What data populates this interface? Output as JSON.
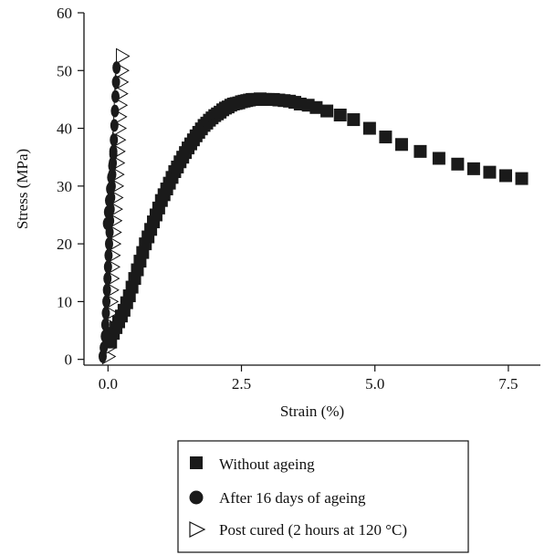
{
  "chart_data": {
    "type": "scatter",
    "title": "",
    "xlabel": "Strain (%)",
    "ylabel": "Stress (MPa)",
    "xlim": [
      -0.45,
      8.1
    ],
    "ylim": [
      -1,
      60
    ],
    "xticks": [
      0.0,
      2.5,
      5.0,
      7.5
    ],
    "xtick_labels": [
      "0.0",
      "2.5",
      "5.0",
      "7.5"
    ],
    "yticks": [
      0,
      10,
      20,
      30,
      40,
      50,
      60
    ],
    "ytick_labels": [
      "0",
      "10",
      "20",
      "30",
      "40",
      "50",
      "60"
    ],
    "grid": false,
    "legend_position": "bottom",
    "series": [
      {
        "name": "Without ageing",
        "marker": "square",
        "color": "#1a1a1a",
        "x": [
          0.05,
          0.1,
          0.15,
          0.2,
          0.25,
          0.3,
          0.35,
          0.4,
          0.45,
          0.5,
          0.55,
          0.6,
          0.65,
          0.7,
          0.75,
          0.8,
          0.85,
          0.9,
          0.95,
          1.0,
          1.05,
          1.1,
          1.15,
          1.2,
          1.25,
          1.3,
          1.35,
          1.4,
          1.45,
          1.5,
          1.55,
          1.6,
          1.65,
          1.7,
          1.75,
          1.8,
          1.85,
          1.9,
          1.95,
          2.0,
          2.05,
          2.1,
          2.15,
          2.2,
          2.25,
          2.3,
          2.35,
          2.4,
          2.45,
          2.5,
          2.55,
          2.6,
          2.65,
          2.7,
          2.75,
          2.8,
          2.85,
          2.9,
          2.95,
          3.0,
          3.1,
          3.2,
          3.3,
          3.4,
          3.5,
          3.6,
          3.75,
          3.9,
          4.1,
          4.35,
          4.6,
          4.9,
          5.2,
          5.5,
          5.85,
          6.2,
          6.55,
          6.85,
          7.15,
          7.45,
          7.75
        ],
        "y": [
          3.0,
          4.5,
          5.5,
          6.5,
          7.5,
          8.5,
          9.8,
          11.0,
          12.5,
          14.0,
          15.5,
          17.0,
          18.5,
          20.0,
          21.2,
          22.5,
          23.8,
          25.0,
          26.2,
          27.5,
          28.5,
          29.5,
          30.5,
          31.5,
          32.5,
          33.3,
          34.2,
          35.0,
          35.8,
          36.6,
          37.3,
          38.0,
          38.7,
          39.3,
          39.9,
          40.5,
          40.9,
          41.4,
          41.8,
          42.2,
          42.5,
          42.8,
          43.2,
          43.5,
          43.7,
          44.0,
          44.2,
          44.3,
          44.4,
          44.6,
          44.7,
          44.8,
          44.9,
          45.0,
          45.0,
          45.0,
          45.1,
          45.0,
          45.0,
          45.0,
          45.0,
          44.9,
          44.8,
          44.7,
          44.5,
          44.2,
          44.0,
          43.6,
          43.0,
          42.3,
          41.5,
          40.0,
          38.5,
          37.2,
          36.0,
          34.8,
          33.8,
          33.0,
          32.4,
          31.8,
          31.3
        ]
      },
      {
        "name": "After 16 days of ageing",
        "marker": "circle",
        "color": "#1a1a1a",
        "x": [
          -0.1,
          -0.08,
          -0.06,
          -0.05,
          -0.04,
          -0.03,
          -0.02,
          -0.01,
          0.0,
          0.01,
          0.02,
          0.03,
          0.04,
          0.05,
          0.06,
          0.07,
          0.08,
          0.09,
          0.1,
          -0.02,
          0.0,
          0.02,
          0.04,
          0.06,
          0.08,
          0.1,
          0.11,
          0.12,
          0.13,
          0.14,
          0.15,
          0.16
        ],
        "y": [
          0.5,
          2.0,
          4.0,
          6.0,
          8.0,
          10.0,
          12.0,
          14.0,
          16.0,
          18.0,
          20.0,
          22.0,
          24.0,
          26.0,
          28.0,
          30.0,
          32.0,
          34.0,
          36.0,
          23.5,
          25.5,
          27.5,
          29.5,
          31.5,
          33.5,
          35.5,
          38.0,
          40.5,
          43.0,
          45.5,
          48.0,
          50.5
        ]
      },
      {
        "name": "Post cured (2 hours at 120 °C)",
        "marker": "triangle-right",
        "color": "#1a1a1a",
        "x": [
          0.0,
          0.01,
          0.02,
          0.03,
          0.04,
          0.05,
          0.06,
          0.07,
          0.08,
          0.09,
          0.1,
          0.11,
          0.12,
          0.13,
          0.14,
          0.15,
          0.16,
          0.17,
          0.18,
          0.19,
          0.2,
          0.21,
          0.22,
          0.23,
          0.24,
          0.25,
          0.26
        ],
        "y": [
          0.5,
          2.0,
          4.0,
          6.0,
          8.0,
          10.0,
          12.0,
          14.0,
          16.0,
          18.0,
          20.0,
          22.0,
          24.0,
          26.0,
          28.0,
          30.0,
          32.0,
          34.0,
          36.0,
          38.0,
          40.0,
          42.0,
          44.0,
          46.0,
          48.0,
          50.0,
          52.5
        ]
      }
    ]
  }
}
